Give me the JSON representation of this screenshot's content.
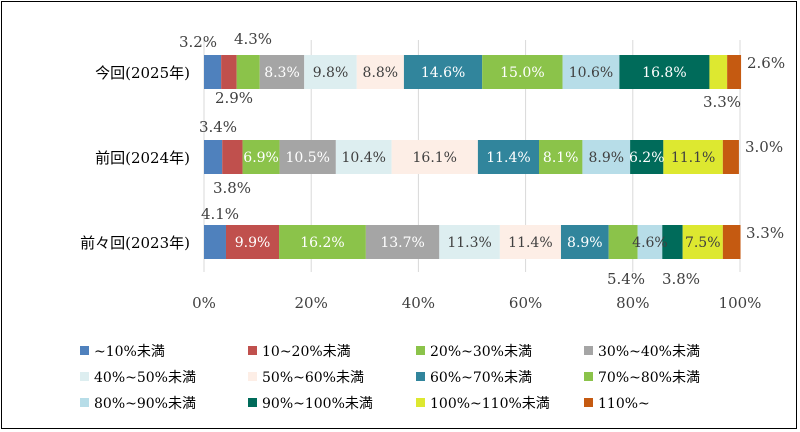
{
  "chart_data": {
    "type": "bar",
    "orientation": "horizontal",
    "stacked": "percent",
    "categories": [
      "今回(2025年)",
      "前回(2024年)",
      "前々回(2023年)"
    ],
    "xlim": [
      0,
      100
    ],
    "x_ticks": [
      "0%",
      "20%",
      "40%",
      "60%",
      "80%",
      "100%"
    ],
    "grid": true,
    "legend_position": "bottom",
    "series": [
      {
        "name": "~10%未満",
        "color": "#4F81BD",
        "values": [
          3.2,
          3.4,
          4.1
        ],
        "labels": [
          "3.2%",
          "3.4%",
          "4.1%"
        ]
      },
      {
        "name": "10~20%未満",
        "color": "#C0504D",
        "values": [
          2.9,
          3.8,
          9.9
        ],
        "labels": [
          "2.9%",
          "3.8%",
          "9.9%"
        ]
      },
      {
        "name": "20%~30%未満",
        "color": "#8BC34A",
        "values": [
          4.3,
          6.9,
          16.2
        ],
        "labels": [
          "4.3%",
          "6.9%",
          "16.2%"
        ]
      },
      {
        "name": "30%~40%未満",
        "color": "#A5A5A5",
        "values": [
          8.3,
          10.5,
          13.7
        ],
        "labels": [
          "8.3%",
          "10.5%",
          "13.7%"
        ]
      },
      {
        "name": "40%~50%未満",
        "color": "#DDEEF0",
        "values": [
          9.8,
          10.4,
          11.3
        ],
        "labels": [
          "9.8%",
          "10.4%",
          "11.3%"
        ]
      },
      {
        "name": "50%~60%未満",
        "color": "#FDEEE6",
        "values": [
          8.8,
          16.1,
          11.4
        ],
        "labels": [
          "8.8%",
          "16.1%",
          "11.4%"
        ]
      },
      {
        "name": "60%~70%未満",
        "color": "#31859C",
        "values": [
          14.6,
          11.4,
          8.9
        ],
        "labels": [
          "14.6%",
          "11.4%",
          "8.9%"
        ]
      },
      {
        "name": "70%~80%未満",
        "color": "#8BC34A",
        "values": [
          15.0,
          8.1,
          5.4
        ],
        "labels": [
          "15.0%",
          "8.1%",
          "5.4%"
        ]
      },
      {
        "name": "80%~90%未満",
        "color": "#B7DDE8",
        "values": [
          10.6,
          8.9,
          4.6
        ],
        "labels": [
          "10.6%",
          "8.9%",
          "4.6%"
        ]
      },
      {
        "name": "90%~100%未満",
        "color": "#006B5A",
        "values": [
          16.8,
          6.2,
          3.8
        ],
        "labels": [
          "16.8%",
          "6.2%",
          "3.8%"
        ]
      },
      {
        "name": "100%~110%未満",
        "color": "#DDE830",
        "values": [
          3.3,
          11.1,
          7.5
        ],
        "labels": [
          "3.3%",
          "11.1%",
          "7.5%"
        ]
      },
      {
        "name": "110%~",
        "color": "#C55A11",
        "values": [
          2.6,
          3.0,
          3.3
        ],
        "labels": [
          "2.6%",
          "3.0%",
          "3.3%"
        ]
      }
    ]
  }
}
